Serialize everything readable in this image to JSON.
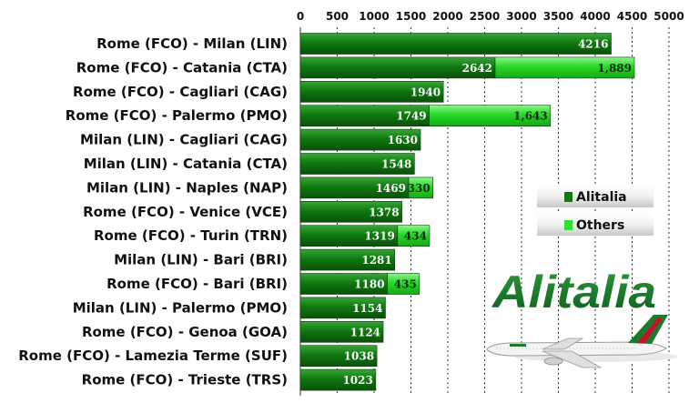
{
  "chart_data": {
    "type": "bar",
    "orientation": "horizontal",
    "stacked": true,
    "categories": [
      "Rome (FCO) - Milan (LIN)",
      "Rome (FCO) - Catania (CTA)",
      "Rome (FCO) - Cagliari (CAG)",
      "Rome (FCO) - Palermo (PMO)",
      "Milan (LIN) - Cagliari (CAG)",
      "Milan (LIN) - Catania (CTA)",
      "Milan (LIN) - Naples (NAP)",
      "Rome (FCO) - Venice (VCE)",
      "Rome (FCO) - Turin (TRN)",
      "Milan (LIN) - Bari (BRI)",
      "Rome (FCO) - Bari (BRI)",
      "Milan (LIN) - Palermo (PMO)",
      "Rome (FCO) - Genoa (GOA)",
      "Rome (FCO) - Lamezia Terme (SUF)",
      "Rome (FCO) - Trieste (TRS)"
    ],
    "series": [
      {
        "name": "Alitalia",
        "color": "#117a11",
        "values": [
          4216,
          2642,
          1940,
          1749,
          1630,
          1548,
          1469,
          1378,
          1319,
          1281,
          1180,
          1154,
          1124,
          1038,
          1023
        ],
        "labels": [
          "4216",
          "2642",
          "1940",
          "1749",
          "1630",
          "1548",
          "1469",
          "1378",
          "1319",
          "1281",
          "1180",
          "1154",
          "1124",
          "1038",
          "1023"
        ]
      },
      {
        "name": "Others",
        "color": "#2fe02f",
        "values": [
          null,
          1889,
          null,
          1643,
          null,
          null,
          330,
          null,
          434,
          null,
          435,
          null,
          null,
          null,
          null
        ],
        "labels": [
          null,
          "1,889",
          null,
          "1,643",
          null,
          null,
          "330",
          null,
          "434",
          null,
          "435",
          null,
          null,
          null,
          null
        ]
      }
    ],
    "xticks": [
      0,
      500,
      1000,
      1500,
      2000,
      2500,
      3000,
      3500,
      4000,
      4500,
      5000
    ],
    "xlim": [
      0,
      5000
    ],
    "grid": "vertical-dashed",
    "legend_position": "right",
    "title": "",
    "xlabel": "",
    "ylabel": ""
  },
  "logo": {
    "wordmark": "Alitalia"
  }
}
